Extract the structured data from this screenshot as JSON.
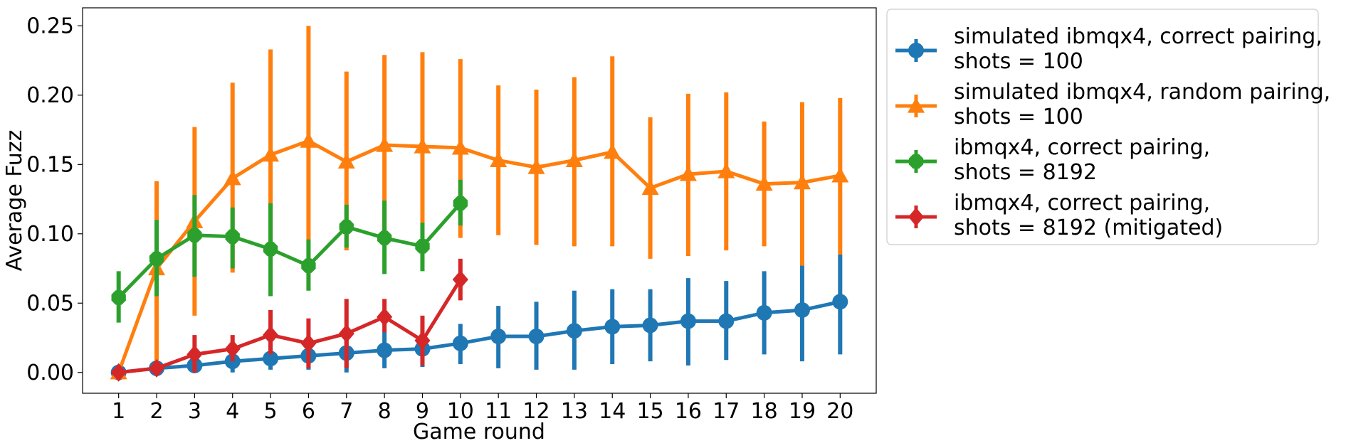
{
  "chart_data": {
    "type": "line",
    "xlabel": "Game round",
    "ylabel": "Average Fuzz",
    "xlim": [
      0.05,
      20.95
    ],
    "ylim": [
      -0.015,
      0.263
    ],
    "xticks": [
      1,
      2,
      3,
      4,
      5,
      6,
      7,
      8,
      9,
      10,
      11,
      12,
      13,
      14,
      15,
      16,
      17,
      18,
      19,
      20
    ],
    "yticks": [
      {
        "value": 0.0,
        "label": "0.00"
      },
      {
        "value": 0.05,
        "label": "0.05"
      },
      {
        "value": 0.1,
        "label": "0.10"
      },
      {
        "value": 0.15,
        "label": "0.15"
      },
      {
        "value": 0.2,
        "label": "0.20"
      },
      {
        "value": 0.25,
        "label": "0.25"
      }
    ],
    "grid": false,
    "legend_position": "outside-right-top",
    "series": [
      {
        "name_lines": [
          "simulated ibmqx4, correct pairing,",
          "shots = 100"
        ],
        "color": "#1f77b4",
        "marker": "circle",
        "x": [
          1,
          2,
          3,
          4,
          5,
          6,
          7,
          8,
          9,
          10,
          11,
          12,
          13,
          14,
          15,
          16,
          17,
          18,
          19,
          20
        ],
        "y": [
          0.0,
          0.003,
          0.005,
          0.008,
          0.01,
          0.012,
          0.014,
          0.016,
          0.017,
          0.021,
          0.026,
          0.026,
          0.03,
          0.033,
          0.034,
          0.037,
          0.037,
          0.043,
          0.045,
          0.051
        ],
        "err_low": [
          0.0,
          0.0,
          0.0,
          0.0,
          0.002,
          0.002,
          0.0,
          0.003,
          0.004,
          0.006,
          0.003,
          0.002,
          0.002,
          0.006,
          0.008,
          0.005,
          0.009,
          0.013,
          0.008,
          0.013
        ],
        "err_high": [
          0.0,
          0.007,
          0.01,
          0.018,
          0.02,
          0.022,
          0.027,
          0.03,
          0.03,
          0.035,
          0.048,
          0.051,
          0.059,
          0.06,
          0.06,
          0.068,
          0.066,
          0.073,
          0.078,
          0.085
        ]
      },
      {
        "name_lines": [
          "simulated ibmqx4, random pairing,",
          "shots = 100"
        ],
        "color": "#ff7f0e",
        "marker": "triangle",
        "x": [
          1,
          2,
          3,
          4,
          5,
          6,
          7,
          8,
          9,
          10,
          11,
          12,
          13,
          14,
          15,
          16,
          17,
          18,
          19,
          20
        ],
        "y": [
          0.0,
          0.075,
          0.109,
          0.14,
          0.157,
          0.167,
          0.152,
          0.164,
          0.163,
          0.162,
          0.153,
          0.148,
          0.153,
          0.159,
          0.133,
          0.143,
          0.145,
          0.136,
          0.137,
          0.142
        ],
        "err_low": [
          0.0,
          0.002,
          0.041,
          0.072,
          0.086,
          0.095,
          0.088,
          0.1,
          0.107,
          0.097,
          0.099,
          0.092,
          0.091,
          0.091,
          0.082,
          0.084,
          0.088,
          0.091,
          0.077,
          0.085
        ],
        "err_high": [
          0.0,
          0.138,
          0.177,
          0.209,
          0.233,
          0.25,
          0.217,
          0.229,
          0.231,
          0.226,
          0.207,
          0.204,
          0.213,
          0.228,
          0.184,
          0.201,
          0.202,
          0.181,
          0.195,
          0.198
        ]
      },
      {
        "name_lines": [
          "ibmqx4, correct pairing,",
          "shots = 8192"
        ],
        "color": "#2ca02c",
        "marker": "octagon",
        "x": [
          1,
          2,
          3,
          4,
          5,
          6,
          7,
          8,
          9,
          10
        ],
        "y": [
          0.054,
          0.082,
          0.099,
          0.098,
          0.089,
          0.077,
          0.105,
          0.097,
          0.091,
          0.122
        ],
        "err_low": [
          0.036,
          0.055,
          0.069,
          0.075,
          0.055,
          0.059,
          0.09,
          0.071,
          0.073,
          0.106
        ],
        "err_high": [
          0.073,
          0.11,
          0.128,
          0.119,
          0.122,
          0.096,
          0.121,
          0.124,
          0.108,
          0.139
        ]
      },
      {
        "name_lines": [
          "ibmqx4, correct pairing,",
          "shots = 8192 (mitigated)"
        ],
        "color": "#d62728",
        "marker": "diamond",
        "x": [
          1,
          2,
          3,
          4,
          5,
          6,
          7,
          8,
          9,
          10
        ],
        "y": [
          0.0,
          0.003,
          0.013,
          0.017,
          0.027,
          0.021,
          0.028,
          0.04,
          0.023,
          0.067
        ],
        "err_low": [
          0.0,
          0.0,
          0.0,
          0.008,
          0.013,
          0.003,
          0.003,
          0.029,
          0.005,
          0.052
        ],
        "err_high": [
          0.0,
          0.006,
          0.027,
          0.027,
          0.045,
          0.039,
          0.053,
          0.053,
          0.041,
          0.082
        ]
      }
    ]
  }
}
